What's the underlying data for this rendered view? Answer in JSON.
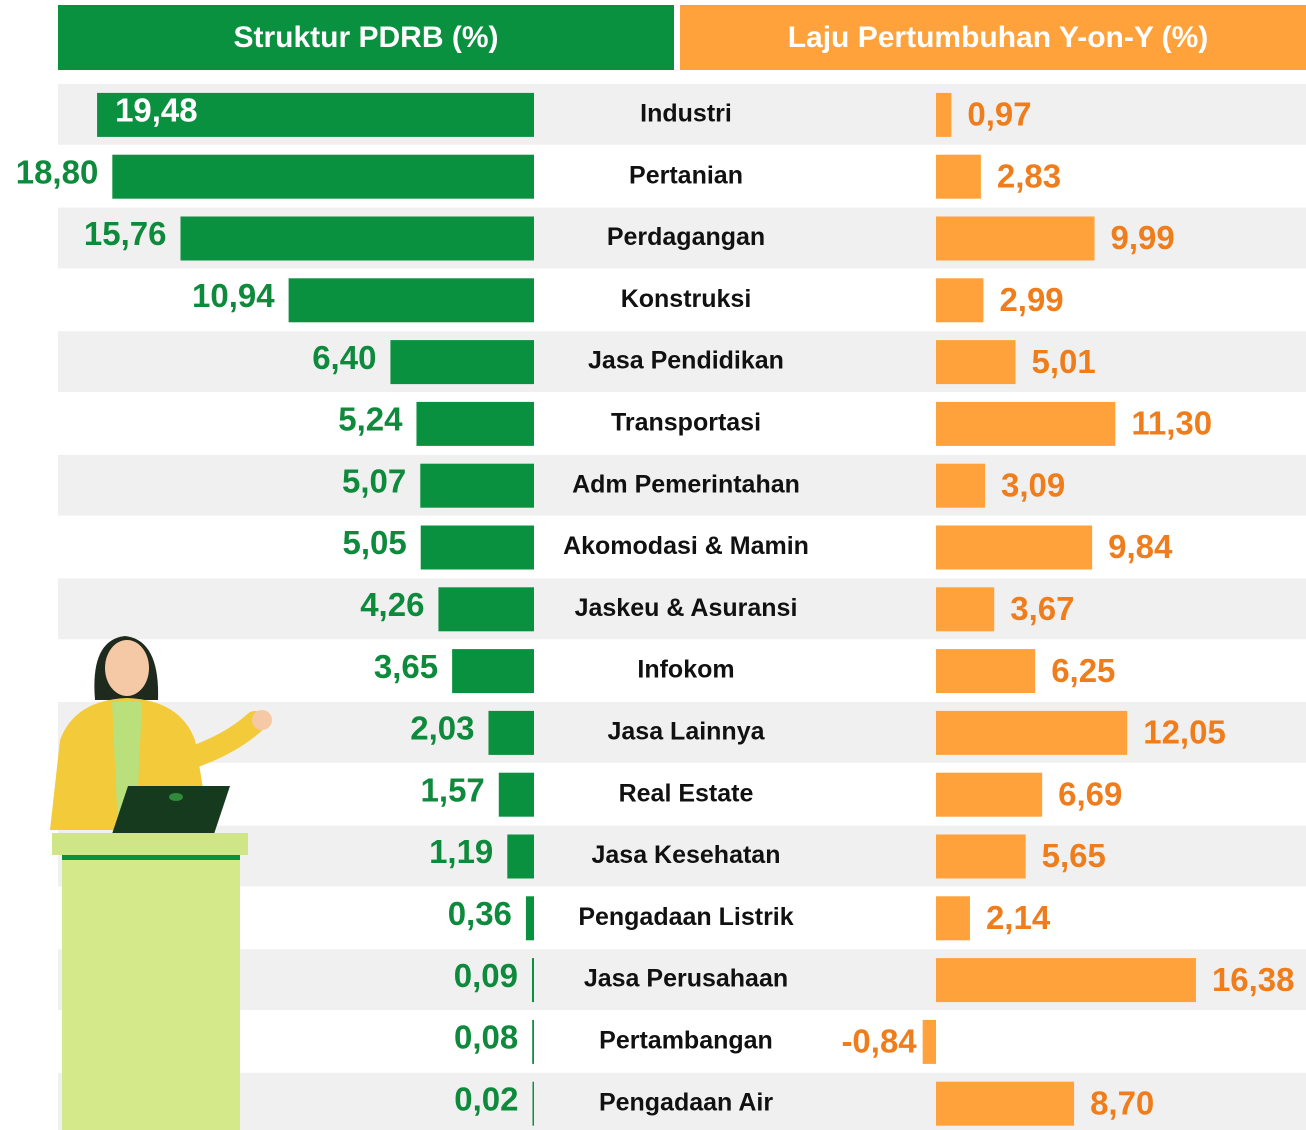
{
  "chart_data": {
    "type": "bar",
    "orientation": "horizontal",
    "categories": [
      "Industri",
      "Pertanian",
      "Perdagangan",
      "Konstruksi",
      "Jasa Pendidikan",
      "Transportasi",
      "Adm Pemerintahan",
      "Akomodasi & Mamin",
      "Jaskeu & Asuransi",
      "Infokom",
      "Jasa Lainnya",
      "Real Estate",
      "Jasa Kesehatan",
      "Pengadaan Listrik",
      "Jasa Perusahaan",
      "Pertambangan",
      "Pengadaan Air"
    ],
    "series": [
      {
        "name": "Struktur PDRB (%)",
        "color": "#0a9140",
        "values": [
          19.48,
          18.8,
          15.76,
          10.94,
          6.4,
          5.24,
          5.07,
          5.05,
          4.26,
          3.65,
          2.03,
          1.57,
          1.19,
          0.36,
          0.09,
          0.08,
          0.02
        ],
        "value_labels": [
          "19,48",
          "18,80",
          "15,76",
          "10,94",
          "6,40",
          "5,24",
          "5,07",
          "5,05",
          "4,26",
          "3,65",
          "2,03",
          "1,57",
          "1,19",
          "0,36",
          "0,09",
          "0,08",
          "0,02"
        ]
      },
      {
        "name": "Laju Pertumbuhan Y-on-Y (%)",
        "color": "#ffa23c",
        "values": [
          0.97,
          2.83,
          9.99,
          2.99,
          5.01,
          11.3,
          3.09,
          9.84,
          3.67,
          6.25,
          12.05,
          6.69,
          5.65,
          2.14,
          16.38,
          -0.84,
          8.7
        ],
        "value_labels": [
          "0,97",
          "2,83",
          "9,99",
          "2,99",
          "5,01",
          "11,30",
          "3,09",
          "9,84",
          "3,67",
          "6,25",
          "12,05",
          "6,69",
          "5,65",
          "2,14",
          "16,38",
          "-0,84",
          "8,70"
        ]
      }
    ]
  }
}
